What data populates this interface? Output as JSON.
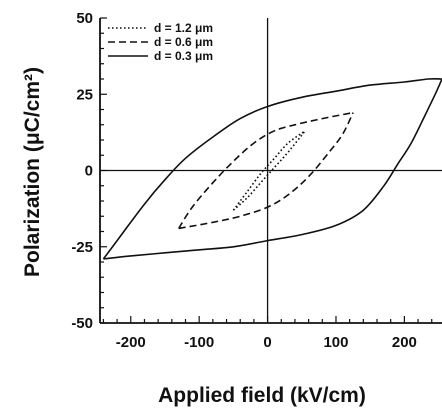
{
  "chart_data": {
    "type": "line",
    "title": "",
    "xlabel": "Applied field  (kV/cm)",
    "ylabel": "Polarization  (μC/cm²)",
    "xlim": [
      -245,
      255
    ],
    "ylim": [
      -50,
      50
    ],
    "x_ticks": [
      -200,
      -100,
      0,
      100,
      200
    ],
    "x_tick_labels": [
      "-200",
      "-100",
      "0",
      "100",
      "200"
    ],
    "y_ticks": [
      50,
      25,
      0,
      -25,
      -50
    ],
    "y_tick_labels": [
      "50",
      "25",
      "0",
      "-25",
      "-50"
    ],
    "zero_lines": true,
    "legend_position": "top-left",
    "series": [
      {
        "name": "d = 1.2 μm",
        "style": "dotted",
        "upper": [
          [
            -50,
            -13
          ],
          [
            -30,
            -7
          ],
          [
            -10,
            -1
          ],
          [
            10,
            4
          ],
          [
            30,
            9
          ],
          [
            55,
            13
          ]
        ],
        "lower": [
          [
            -50,
            -13
          ],
          [
            -30,
            -9
          ],
          [
            -10,
            -4
          ],
          [
            10,
            1
          ],
          [
            30,
            6
          ],
          [
            55,
            13
          ]
        ]
      },
      {
        "name": "d = 0.6 μm",
        "style": "dashed",
        "upper": [
          [
            -130,
            -19
          ],
          [
            -110,
            -12
          ],
          [
            -80,
            -4
          ],
          [
            -50,
            3
          ],
          [
            -20,
            9
          ],
          [
            10,
            13
          ],
          [
            40,
            15
          ],
          [
            80,
            17
          ],
          [
            125,
            19
          ]
        ],
        "lower": [
          [
            -130,
            -19
          ],
          [
            -80,
            -17
          ],
          [
            -40,
            -15
          ],
          [
            0,
            -12
          ],
          [
            30,
            -8
          ],
          [
            60,
            -2
          ],
          [
            90,
            6
          ],
          [
            110,
            12
          ],
          [
            125,
            19
          ]
        ]
      },
      {
        "name": "d = 0.3 μm",
        "style": "solid",
        "upper": [
          [
            -240,
            -29
          ],
          [
            -220,
            -23
          ],
          [
            -180,
            -11
          ],
          [
            -150,
            -3
          ],
          [
            -120,
            4
          ],
          [
            -80,
            11
          ],
          [
            -40,
            17
          ],
          [
            0,
            21
          ],
          [
            50,
            24
          ],
          [
            100,
            26
          ],
          [
            150,
            28
          ],
          [
            200,
            29
          ],
          [
            235,
            30
          ],
          [
            255,
            30
          ]
        ],
        "lower": [
          [
            -240,
            -29
          ],
          [
            -200,
            -28
          ],
          [
            -150,
            -27
          ],
          [
            -100,
            -26
          ],
          [
            -50,
            -25
          ],
          [
            0,
            -23
          ],
          [
            50,
            -21
          ],
          [
            100,
            -18
          ],
          [
            140,
            -13
          ],
          [
            170,
            -5
          ],
          [
            190,
            2
          ],
          [
            210,
            9
          ],
          [
            230,
            18
          ],
          [
            245,
            25
          ],
          [
            255,
            30
          ]
        ]
      }
    ]
  }
}
